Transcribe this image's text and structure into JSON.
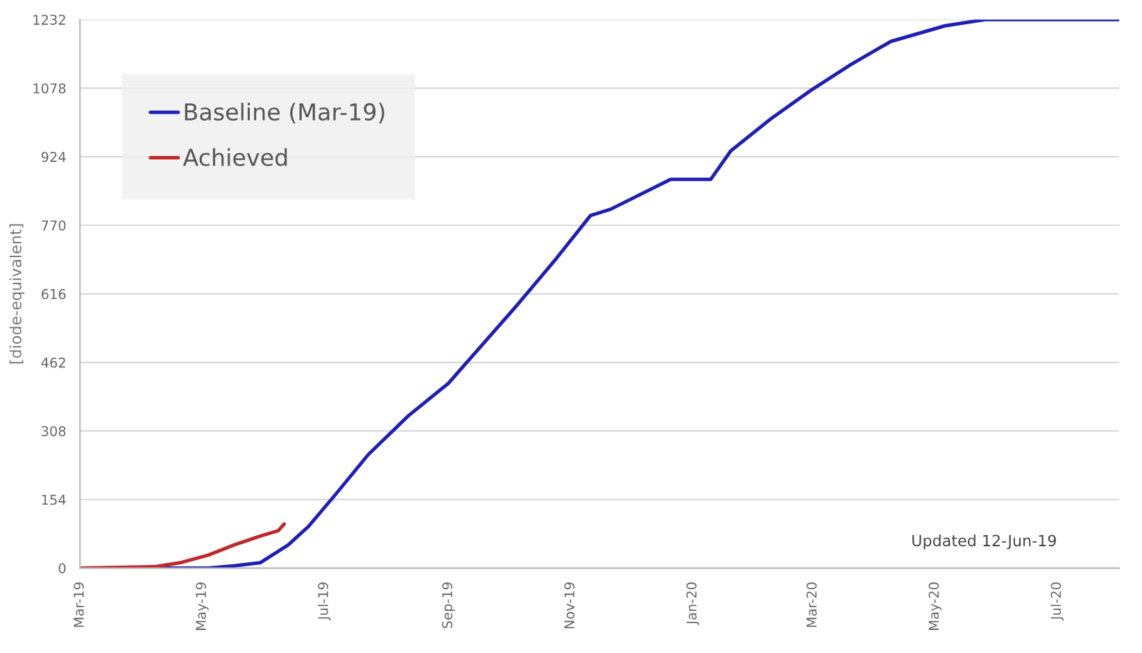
{
  "chart_data": {
    "type": "line",
    "ylabel": "[diode-equivalent]",
    "xlim": [
      "2019-03-01",
      "2020-08-01"
    ],
    "xticks": [
      {
        "value": "2019-03-01",
        "label": "Mar-19"
      },
      {
        "value": "2019-05-01",
        "label": "May-19"
      },
      {
        "value": "2019-07-01",
        "label": "Jul-19"
      },
      {
        "value": "2019-09-01",
        "label": "Sep-19"
      },
      {
        "value": "2019-11-01",
        "label": "Nov-19"
      },
      {
        "value": "2020-01-01",
        "label": "Jan-20"
      },
      {
        "value": "2020-03-01",
        "label": "Mar-20"
      },
      {
        "value": "2020-05-01",
        "label": "May-20"
      },
      {
        "value": "2020-07-01",
        "label": "Jul-20"
      }
    ],
    "ylim": [
      0,
      1232
    ],
    "yticks": [
      0,
      154,
      308,
      462,
      616,
      770,
      924,
      1078,
      1232
    ],
    "grid": "y",
    "legend": "top left",
    "annotations": [
      "Updated 12-Jun-19"
    ],
    "series": [
      {
        "name": "Baseline (Mar-19)",
        "color": "#1f1fb4",
        "x": [
          "2019-03-01",
          "2019-05-04",
          "2019-05-17",
          "2019-05-30",
          "2019-06-13",
          "2019-06-23",
          "2019-07-06",
          "2019-07-23",
          "2019-08-12",
          "2019-09-01",
          "2019-09-18",
          "2019-10-05",
          "2019-10-25",
          "2019-11-11",
          "2019-11-21",
          "2019-12-21",
          "2020-01-10",
          "2020-01-20",
          "2020-02-09",
          "2020-02-29",
          "2020-03-20",
          "2020-04-09",
          "2020-05-06",
          "2020-05-26",
          "2020-08-01"
        ],
        "values": [
          0,
          0,
          5,
          12,
          52,
          93,
          162,
          255,
          342,
          415,
          502,
          589,
          696,
          792,
          806,
          873,
          873,
          937,
          1009,
          1073,
          1131,
          1183,
          1218,
          1232,
          1232
        ]
      },
      {
        "name": "Achieved",
        "color": "#c0282a",
        "x": [
          "2019-03-01",
          "2019-04-07",
          "2019-04-20",
          "2019-05-04",
          "2019-05-17",
          "2019-05-30",
          "2019-06-08",
          "2019-06-11"
        ],
        "values": [
          0,
          3,
          12,
          29,
          52,
          72,
          84,
          99
        ]
      }
    ]
  }
}
